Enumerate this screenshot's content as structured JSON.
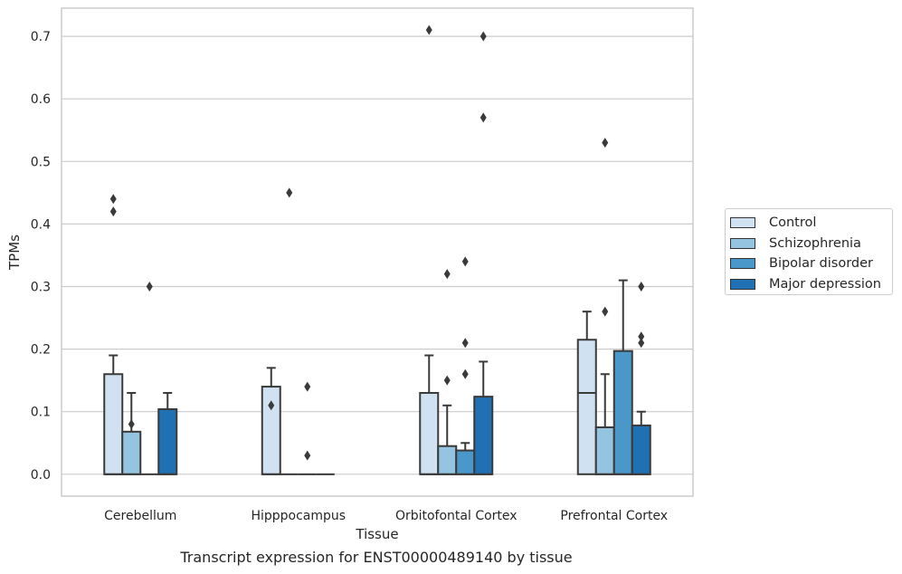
{
  "chart_data": {
    "type": "boxplot",
    "xlabel": "Tissue",
    "ylabel": "TPMs",
    "caption": "Transcript expression for ENST00000489140 by tissue",
    "ylim": [
      -0.035,
      0.745
    ],
    "yticks": [
      "0.0",
      "0.1",
      "0.2",
      "0.3",
      "0.4",
      "0.5",
      "0.6",
      "0.7"
    ],
    "grid": true,
    "legend_position": "right",
    "categories": [
      "Cerebellum",
      "Hipppocampus",
      "Orbitofontal Cortex",
      "Prefrontal Cortex"
    ],
    "series": [
      {
        "name": "Control",
        "color": "#d0e1f2",
        "boxes": [
          {
            "q1": 0.0,
            "median": 0.0,
            "q3": 0.16,
            "whisker_low": 0.0,
            "whisker_high": 0.19,
            "outliers": [
              0.42,
              0.44
            ]
          },
          {
            "q1": 0.0,
            "median": 0.0,
            "q3": 0.14,
            "whisker_low": 0.0,
            "whisker_high": 0.17,
            "outliers": [
              0.11
            ]
          },
          {
            "q1": 0.0,
            "median": 0.0,
            "q3": 0.13,
            "whisker_low": 0.0,
            "whisker_high": 0.19,
            "outliers": [
              0.71
            ]
          },
          {
            "q1": 0.0,
            "median": 0.13,
            "q3": 0.215,
            "whisker_low": 0.0,
            "whisker_high": 0.26,
            "outliers": []
          }
        ]
      },
      {
        "name": "Schizophrenia",
        "color": "#94c4df",
        "boxes": [
          {
            "q1": 0.0,
            "median": 0.0,
            "q3": 0.068,
            "whisker_low": 0.0,
            "whisker_high": 0.13,
            "outliers": [
              0.08
            ]
          },
          {
            "q1": 0.0,
            "median": 0.0,
            "q3": 0.0,
            "whisker_low": 0.0,
            "whisker_high": 0.0,
            "outliers": [
              0.45
            ]
          },
          {
            "q1": 0.0,
            "median": 0.0,
            "q3": 0.045,
            "whisker_low": 0.0,
            "whisker_high": 0.11,
            "outliers": [
              0.15,
              0.32
            ]
          },
          {
            "q1": 0.0,
            "median": 0.0,
            "q3": 0.075,
            "whisker_low": 0.0,
            "whisker_high": 0.16,
            "outliers": [
              0.26,
              0.53
            ]
          }
        ]
      },
      {
        "name": "Bipolar disorder",
        "color": "#4a98c9",
        "boxes": [
          {
            "q1": 0.0,
            "median": 0.0,
            "q3": 0.0,
            "whisker_low": 0.0,
            "whisker_high": 0.0,
            "outliers": [
              0.3
            ]
          },
          {
            "q1": 0.0,
            "median": 0.0,
            "q3": 0.0,
            "whisker_low": 0.0,
            "whisker_high": 0.0,
            "outliers": [
              0.03,
              0.14
            ]
          },
          {
            "q1": 0.0,
            "median": 0.0,
            "q3": 0.038,
            "whisker_low": 0.0,
            "whisker_high": 0.05,
            "outliers": [
              0.16,
              0.21,
              0.34
            ]
          },
          {
            "q1": 0.0,
            "median": 0.0,
            "q3": 0.197,
            "whisker_low": 0.0,
            "whisker_high": 0.31,
            "outliers": []
          }
        ]
      },
      {
        "name": "Major depression",
        "color": "#2070b4",
        "boxes": [
          {
            "q1": 0.0,
            "median": 0.0,
            "q3": 0.104,
            "whisker_low": 0.0,
            "whisker_high": 0.13,
            "outliers": []
          },
          {
            "q1": 0.0,
            "median": 0.0,
            "q3": 0.0,
            "whisker_low": 0.0,
            "whisker_high": 0.0,
            "outliers": []
          },
          {
            "q1": 0.0,
            "median": 0.0,
            "q3": 0.124,
            "whisker_low": 0.0,
            "whisker_high": 0.18,
            "outliers": [
              0.57,
              0.7
            ]
          },
          {
            "q1": 0.0,
            "median": 0.0,
            "q3": 0.078,
            "whisker_low": 0.0,
            "whisker_high": 0.1,
            "outliers": [
              0.21,
              0.22,
              0.3
            ]
          }
        ]
      }
    ]
  }
}
